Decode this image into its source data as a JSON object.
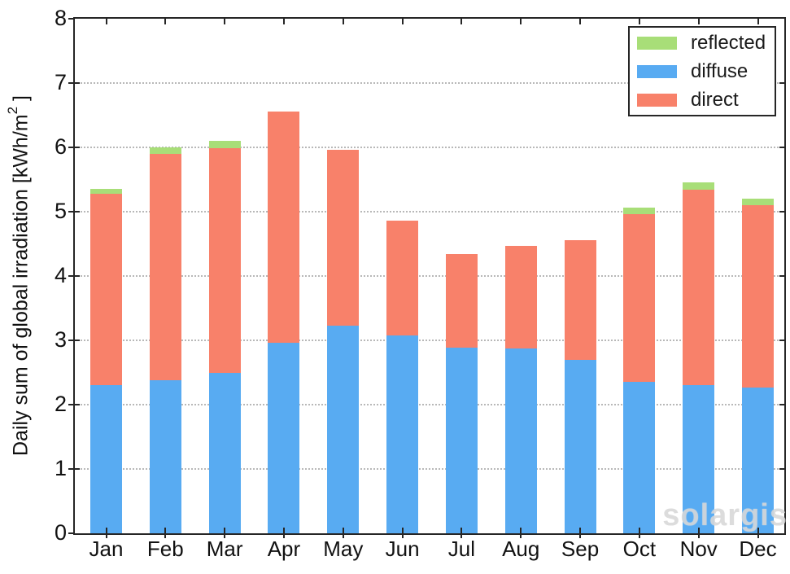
{
  "watermark": "solargis",
  "colors": {
    "axis": "#262626",
    "grid": "#b8b8b8",
    "text": "#1a1a1a",
    "reflected": "#a8de78",
    "diffuse": "#58abf2",
    "direct": "#f8816a",
    "watermark": "#d2d2d2"
  },
  "chart_data": {
    "type": "bar",
    "stacked": true,
    "title": "",
    "xlabel": "",
    "ylabel": "Daily sum of global irradiation [kWh/m2 ]",
    "ylabel_parts": {
      "pre": "Daily sum of global irradiation [kWh/m",
      "sup": "2",
      "post": " ]"
    },
    "categories": [
      "Jan",
      "Feb",
      "Mar",
      "Apr",
      "May",
      "Jun",
      "Jul",
      "Aug",
      "Sep",
      "Oct",
      "Nov",
      "Dec"
    ],
    "series": [
      {
        "name": "reflected",
        "color": "#a8de78",
        "values": [
          0.08,
          0.1,
          0.11,
          0.0,
          0.0,
          0.0,
          0.0,
          0.0,
          0.0,
          0.1,
          0.11,
          0.1
        ]
      },
      {
        "name": "diffuse",
        "color": "#58abf2",
        "values": [
          2.3,
          2.38,
          2.49,
          2.96,
          3.23,
          3.08,
          2.89,
          2.87,
          2.7,
          2.36,
          2.31,
          2.26
        ]
      },
      {
        "name": "direct",
        "color": "#f8816a",
        "values": [
          2.97,
          3.52,
          3.49,
          3.59,
          2.73,
          1.78,
          1.45,
          1.6,
          1.86,
          2.61,
          3.04,
          2.84
        ]
      }
    ],
    "totals": [
      5.35,
      6.0,
      6.09,
      6.55,
      5.96,
      4.86,
      4.34,
      4.47,
      4.56,
      5.07,
      5.46,
      5.2
    ],
    "stack_order_bottom_to_top": [
      "diffuse",
      "direct",
      "reflected"
    ],
    "ylim": [
      0,
      8
    ],
    "yticks": [
      0,
      1,
      2,
      3,
      4,
      5,
      6,
      7,
      8
    ],
    "grid": "horizontal-dotted",
    "legend_position": "top-right"
  }
}
